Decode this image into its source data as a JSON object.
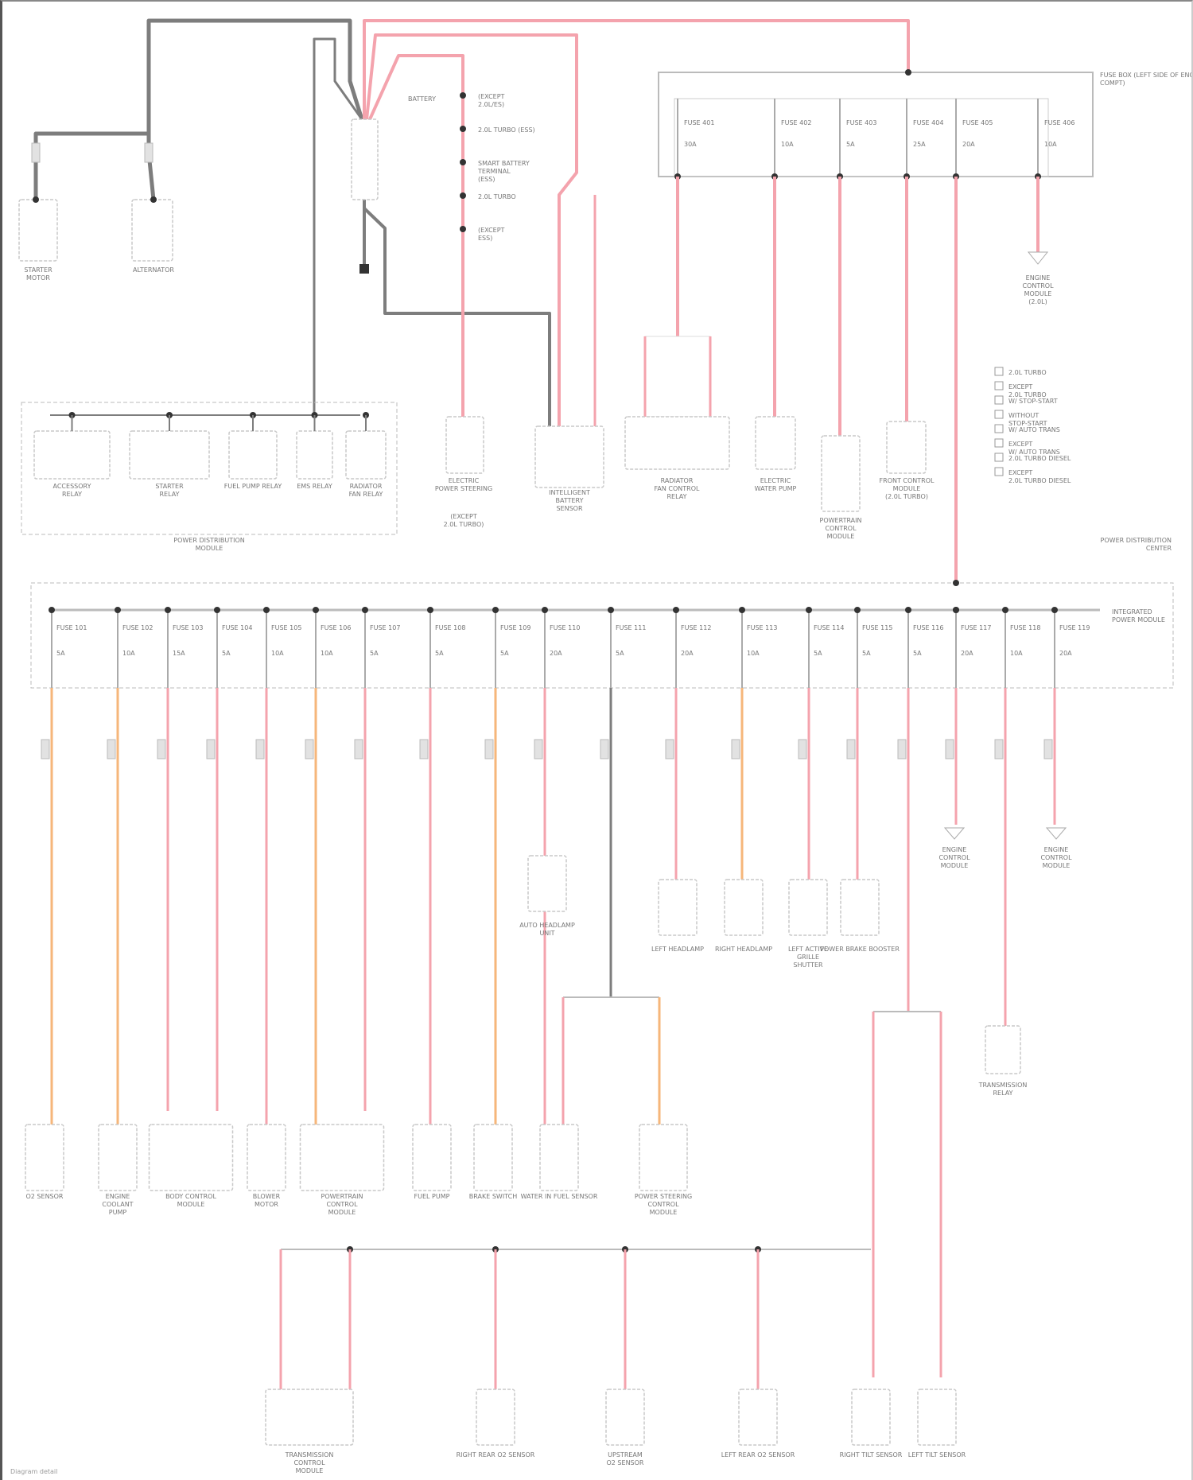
{
  "colors": {
    "power_wire": "#f4a3ad",
    "fused_orange_wire": "#f6b67a",
    "ground_wire": "#7d7d7d",
    "splice": "#333333",
    "component_outline": "#c8c8c8"
  },
  "top": {
    "starter": "STARTER MOTOR",
    "alternator": "ALTERNATOR",
    "battery": "BATTERY",
    "battery_terminals": [
      "(EXCEPT 2.0L/ES)",
      "2.0L TURBO (ESS)",
      "SMART BATTERY TERMINAL (ESS)",
      "2.0L TURBO",
      "(EXCEPT ESS)"
    ],
    "pdm_items": [
      "ACCESSORY RELAY",
      "STARTER RELAY",
      "FUEL PUMP RELAY",
      "EMS RELAY",
      "RADIATOR FAN RELAY"
    ],
    "pdm_label": "POWER DISTRIBUTION MODULE",
    "eps": "ELECTRIC POWER STEERING",
    "eps_note": "(EXCEPT 2.0L TURBO)",
    "ibs": "INTELLIGENT BATTERY SENSOR"
  },
  "upper_fuse_box": {
    "label": "FUSE BOX (LEFT SIDE OF ENGINE COMPT)",
    "fuses": [
      {
        "name": "FUSE 401",
        "rating": "30A"
      },
      {
        "name": "FUSE 402",
        "rating": "10A"
      },
      {
        "name": "FUSE 403",
        "rating": "5A"
      },
      {
        "name": "FUSE 404",
        "rating": "25A"
      },
      {
        "name": "FUSE 405",
        "rating": "20A"
      },
      {
        "name": "FUSE 406",
        "rating": "10A"
      }
    ],
    "loads": [
      "RADIATOR FAN CONTROL RELAY",
      "ELECTRIC WATER PUMP",
      "POWERTRAIN CONTROL MODULE",
      "FRONT CONTROL MODULE (2.0L TURBO)",
      "ENGINE CONTROL MODULE (2.0L)"
    ]
  },
  "legend": {
    "items": [
      "2.0L TURBO",
      "EXCEPT 2.0L TURBO",
      "W/ STOP-START",
      "WITHOUT STOP-START",
      "W/ AUTO TRANS",
      "EXCEPT W/ AUTO TRANS",
      "2.0L TURBO DIESEL",
      "EXCEPT 2.0L TURBO DIESEL"
    ]
  },
  "lower_fuse_box": {
    "label": "INTEGRATED POWER MODULE",
    "side_label": "POWER DISTRIBUTION CENTER",
    "fuses": [
      {
        "name": "FUSE 101",
        "rating": "5A"
      },
      {
        "name": "FUSE 102",
        "rating": "10A"
      },
      {
        "name": "FUSE 103",
        "rating": "15A"
      },
      {
        "name": "FUSE 104",
        "rating": "5A"
      },
      {
        "name": "FUSE 105",
        "rating": "10A"
      },
      {
        "name": "FUSE 106",
        "rating": "10A"
      },
      {
        "name": "FUSE 107",
        "rating": "5A"
      },
      {
        "name": "FUSE 108",
        "rating": "5A"
      },
      {
        "name": "FUSE 109",
        "rating": "5A"
      },
      {
        "name": "FUSE 110",
        "rating": "20A"
      },
      {
        "name": "FUSE 111",
        "rating": "5A"
      },
      {
        "name": "FUSE 112",
        "rating": "20A"
      },
      {
        "name": "FUSE 113",
        "rating": "10A"
      },
      {
        "name": "FUSE 114",
        "rating": "5A"
      },
      {
        "name": "FUSE 115",
        "rating": "5A"
      },
      {
        "name": "FUSE 116",
        "rating": "5A"
      },
      {
        "name": "FUSE 117",
        "rating": "20A"
      },
      {
        "name": "FUSE 118",
        "rating": "10A"
      },
      {
        "name": "FUSE 119",
        "rating": "20A"
      }
    ]
  },
  "mid_loads": [
    "AUTO HEADLAMP UNIT",
    "LEFT HEADLAMP",
    "RIGHT HEADLAMP",
    "LEFT ACTIVE GRILLE SHUTTER",
    "POWER BRAKE BOOSTER",
    "ENGINE CONTROL MODULE",
    "ENGINE CONTROL MODULE",
    "TRANSMISSION RELAY"
  ],
  "bottom_loads": [
    "O2 SENSOR",
    "ENGINE COOLANT PUMP",
    "BODY CONTROL MODULE",
    "BLOWER MOTOR",
    "POWERTRAIN CONTROL MODULE",
    "FUEL PUMP",
    "BRAKE SWITCH",
    "WATER IN FUEL SENSOR",
    "POWER STEERING CONTROL MODULE"
  ],
  "last_row": [
    "TRANSMISSION CONTROL MODULE",
    "RIGHT REAR O2 SENSOR",
    "UPSTREAM O2 SENSOR",
    "LEFT REAR O2 SENSOR",
    "RIGHT TILT SENSOR",
    "LEFT TILT SENSOR"
  ],
  "footer": "Diagram detail"
}
